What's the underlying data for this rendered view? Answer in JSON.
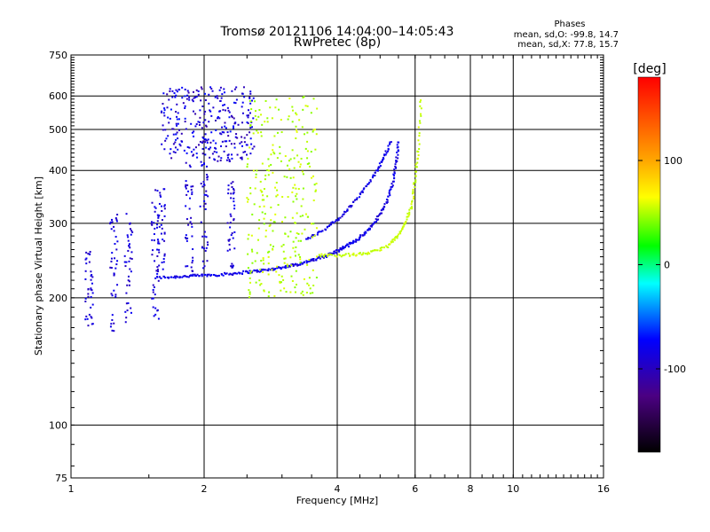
{
  "chart_data": {
    "type": "scatter",
    "title": "Tromsø 20121106 14:04:00–14:05:43",
    "subtitle": "RwPretec (8p)",
    "stats": {
      "title": "Phases",
      "line1": "mean, sd,O: -99.8, 14.7",
      "line2": "mean, sd,X:  77.8, 15.7"
    },
    "xlabel": "Frequency [MHz]",
    "ylabel": "Stationary phase Virtual Height [km]",
    "x_scale": "log",
    "y_scale": "log",
    "xlim": [
      1,
      16
    ],
    "ylim": [
      75,
      750
    ],
    "x_ticks": [
      1,
      2,
      4,
      6,
      8,
      10,
      16
    ],
    "x_tick_labels": [
      "1",
      "2",
      "4",
      "6",
      "8",
      "10",
      "16"
    ],
    "x_gridlines": [
      2,
      4,
      6,
      8,
      10
    ],
    "y_ticks": [
      75,
      100,
      200,
      300,
      400,
      500,
      600,
      750
    ],
    "y_tick_labels": [
      "75",
      "100",
      "200",
      "300",
      "400",
      "500",
      "600",
      "750"
    ],
    "y_gridlines": [
      100,
      200,
      300,
      400,
      500,
      600
    ],
    "grid": true,
    "colorbar": {
      "label": "[deg]",
      "range": [
        -180,
        180
      ],
      "ticks": [
        100,
        0,
        -100
      ],
      "tick_labels": [
        "100",
        "0",
        "-100"
      ]
    },
    "series": [
      {
        "role": "O-mode band (main trace)",
        "phase_deg": -100,
        "x": [
          1.55,
          1.7,
          1.85,
          2.0,
          2.2,
          2.4,
          2.6,
          2.8,
          3.0,
          3.2,
          3.4,
          3.6,
          3.8,
          4.0,
          4.2,
          4.4,
          4.6,
          4.8,
          5.0,
          5.2,
          5.35,
          5.45,
          5.5
        ],
        "y": [
          223,
          224,
          225,
          226,
          227,
          229,
          231,
          233,
          236,
          239,
          243,
          247,
          252,
          258,
          265,
          273,
          283,
          296,
          315,
          340,
          375,
          420,
          470
        ]
      },
      {
        "role": "O-mode band (upper branch)",
        "phase_deg": -100,
        "x": [
          3.4,
          3.7,
          4.0,
          4.3,
          4.6,
          4.9,
          5.1,
          5.3
        ],
        "y": [
          275,
          288,
          305,
          330,
          360,
          395,
          430,
          470
        ]
      },
      {
        "role": "X-mode band",
        "phase_deg": 78,
        "x": [
          3.6,
          4.0,
          4.4,
          4.8,
          5.2,
          5.5,
          5.7,
          5.9,
          6.0,
          6.1,
          6.2
        ],
        "y": [
          252,
          252,
          253,
          256,
          265,
          280,
          300,
          330,
          380,
          450,
          600
        ]
      },
      {
        "role": "O-mode vertical columns",
        "phase_deg": -105,
        "x": [
          1.1,
          1.25,
          1.35,
          1.55,
          1.6,
          1.85,
          2.0,
          2.3
        ],
        "y_min": [
          170,
          165,
          175,
          175,
          230,
          225,
          225,
          225
        ],
        "y_max": [
          260,
          330,
          320,
          360,
          370,
          420,
          420,
          380
        ]
      },
      {
        "role": "O-mode F2 cluster",
        "phase_deg": -105,
        "x_range": [
          1.6,
          2.6
        ],
        "y_range": [
          420,
          630
        ]
      },
      {
        "role": "X-mode / mixed upper cluster",
        "phase_deg": 70,
        "x_range": [
          2.5,
          3.6
        ],
        "y_range": [
          200,
          600
        ]
      }
    ]
  }
}
